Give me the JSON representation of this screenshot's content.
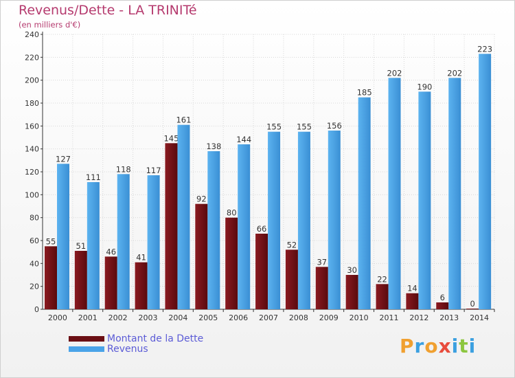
{
  "title": "Revenus/Dette - LA TRINITé",
  "subtitle": "(en milliers d'€)",
  "logo": {
    "letters": [
      "P",
      "r",
      "o",
      "x",
      "i",
      "t",
      "i"
    ],
    "colors": [
      "#f0a030",
      "#3ca0e0",
      "#f0a030",
      "#e84c3d",
      "#3ca0e0",
      "#8cc63f",
      "#3ca0e0"
    ]
  },
  "legend": [
    {
      "label": "Montant de la Dette",
      "color": "#6b0f14"
    },
    {
      "label": "Revenus",
      "color": "#4aa3e8"
    }
  ],
  "chart_data": {
    "type": "bar",
    "categories": [
      "2000",
      "2001",
      "2002",
      "2003",
      "2004",
      "2005",
      "2006",
      "2007",
      "2008",
      "2009",
      "2010",
      "2011",
      "2012",
      "2013",
      "2014"
    ],
    "series": [
      {
        "name": "Montant de la Dette",
        "color": "#6b0f14",
        "values": [
          55,
          51,
          46,
          41,
          145,
          92,
          80,
          66,
          52,
          37,
          30,
          22,
          14,
          6,
          0
        ]
      },
      {
        "name": "Revenus",
        "color": "#4aa3e8",
        "values": [
          127,
          111,
          118,
          117,
          161,
          138,
          144,
          155,
          155,
          156,
          185,
          202,
          190,
          202,
          223
        ]
      }
    ],
    "yticks": [
      "0",
      "20",
      "40",
      "60",
      "80",
      "100",
      "120",
      "140",
      "160",
      "180",
      "200",
      "220",
      "240"
    ],
    "ylim": [
      0,
      240
    ],
    "grid": true,
    "legend_position": "bottom-left"
  }
}
